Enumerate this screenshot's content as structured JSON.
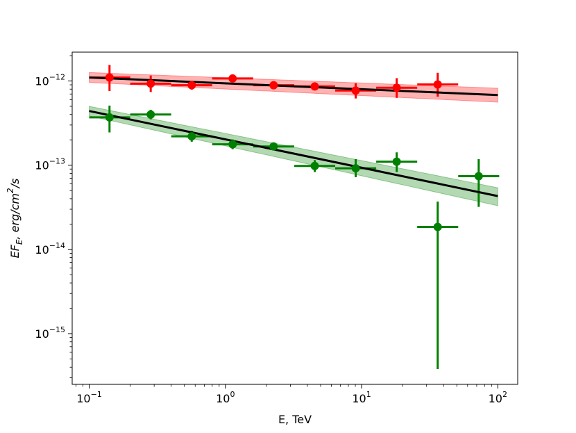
{
  "chart_data": {
    "type": "scatter",
    "title": "",
    "xlabel": "E, TeV",
    "ylabel": "EF_E, erg/cm^2/s",
    "xscale": "log",
    "yscale": "log",
    "xlim": [
      0.075,
      140
    ],
    "ylim": [
      2.5e-16,
      2.2e-12
    ],
    "grid": false,
    "x_ticks": [
      {
        "value": 0.1,
        "base": "10",
        "exp": "−1"
      },
      {
        "value": 1,
        "base": "10",
        "exp": "0"
      },
      {
        "value": 10,
        "base": "10",
        "exp": "1"
      },
      {
        "value": 100,
        "base": "10",
        "exp": "2"
      }
    ],
    "y_ticks": [
      {
        "value": 1e-15,
        "base": "10",
        "exp": "−15"
      },
      {
        "value": 1e-14,
        "base": "10",
        "exp": "−14"
      },
      {
        "value": 1e-13,
        "base": "10",
        "exp": "−13"
      },
      {
        "value": 1e-12,
        "base": "10",
        "exp": "−12"
      }
    ],
    "series": [
      {
        "color": "#ff0000",
        "band_color": "#ff0000",
        "points": [
          {
            "x": 0.141,
            "y": 1.1e-12,
            "xlo": 0.1,
            "xhi": 0.2,
            "ylo": 7.6e-13,
            "yhi": 1.55e-12
          },
          {
            "x": 0.283,
            "y": 9.3e-13,
            "xlo": 0.2,
            "xhi": 0.4,
            "ylo": 7.4e-13,
            "yhi": 1.16e-12
          },
          {
            "x": 0.566,
            "y": 8.9e-13,
            "xlo": 0.4,
            "xhi": 0.8,
            "ylo": 7.9e-13,
            "yhi": 1e-12
          },
          {
            "x": 1.13,
            "y": 1.07e-12,
            "xlo": 0.8,
            "xhi": 1.6,
            "ylo": 1e-12,
            "yhi": 1.15e-12
          },
          {
            "x": 2.26,
            "y": 8.9e-13,
            "xlo": 1.6,
            "xhi": 3.2,
            "ylo": 8.4e-13,
            "yhi": 9.4e-13
          },
          {
            "x": 4.53,
            "y": 8.6e-13,
            "xlo": 3.2,
            "xhi": 6.4,
            "ylo": 7.8e-13,
            "yhi": 9.5e-13
          },
          {
            "x": 9.05,
            "y": 7.7e-13,
            "xlo": 6.4,
            "xhi": 12.8,
            "ylo": 6.2e-13,
            "yhi": 9.4e-13
          },
          {
            "x": 18.1,
            "y": 8.3e-13,
            "xlo": 12.8,
            "xhi": 25.6,
            "ylo": 6.3e-13,
            "yhi": 1.08e-12
          },
          {
            "x": 36.2,
            "y": 9.1e-13,
            "xlo": 25.6,
            "xhi": 51.2,
            "ylo": 6.5e-13,
            "yhi": 1.25e-12
          }
        ],
        "fit": {
          "x0": 0.1,
          "x1": 100,
          "y0": 1.1e-12,
          "y1": 6.8e-13
        },
        "band": {
          "lo0": 9.6e-13,
          "hi0": 1.26e-12,
          "lo1": 5.6e-13,
          "hi1": 8.2e-13
        }
      },
      {
        "color": "#008000",
        "band_color": "#008000",
        "points": [
          {
            "x": 0.141,
            "y": 3.7e-13,
            "xlo": 0.1,
            "xhi": 0.2,
            "ylo": 2.45e-13,
            "yhi": 5.1e-13
          },
          {
            "x": 0.283,
            "y": 4e-13,
            "xlo": 0.2,
            "xhi": 0.4,
            "ylo": 3.5e-13,
            "yhi": 4.55e-13
          },
          {
            "x": 0.566,
            "y": 2.2e-13,
            "xlo": 0.4,
            "xhi": 0.8,
            "ylo": 1.9e-13,
            "yhi": 2.55e-13
          },
          {
            "x": 1.13,
            "y": 1.77e-13,
            "xlo": 0.8,
            "xhi": 1.6,
            "ylo": 1.55e-13,
            "yhi": 2.02e-13
          },
          {
            "x": 2.26,
            "y": 1.67e-13,
            "xlo": 1.6,
            "xhi": 3.2,
            "ylo": 1.57e-13,
            "yhi": 1.78e-13
          },
          {
            "x": 4.53,
            "y": 9.8e-14,
            "xlo": 3.2,
            "xhi": 6.4,
            "ylo": 8.3e-14,
            "yhi": 1.15e-13
          },
          {
            "x": 9.05,
            "y": 9.2e-14,
            "xlo": 6.4,
            "xhi": 12.8,
            "ylo": 7.2e-14,
            "yhi": 1.18e-13
          },
          {
            "x": 18.1,
            "y": 1.1e-13,
            "xlo": 12.8,
            "xhi": 25.6,
            "ylo": 8.3e-14,
            "yhi": 1.42e-13
          },
          {
            "x": 36.2,
            "y": 1.85e-14,
            "xlo": 25.6,
            "xhi": 51.2,
            "ylo": 3.8e-16,
            "yhi": 3.7e-14
          },
          {
            "x": 72.4,
            "y": 7.4e-14,
            "xlo": 51.2,
            "xhi": 102.4,
            "ylo": 3.2e-14,
            "yhi": 1.18e-13
          }
        ],
        "fit": {
          "x0": 0.1,
          "x1": 100,
          "y0": 4.4e-13,
          "y1": 4.3e-14
        },
        "band": {
          "lo0": 3.85e-13,
          "hi0": 5e-13,
          "lo1": 3.3e-14,
          "hi1": 5.4e-14
        }
      }
    ]
  }
}
